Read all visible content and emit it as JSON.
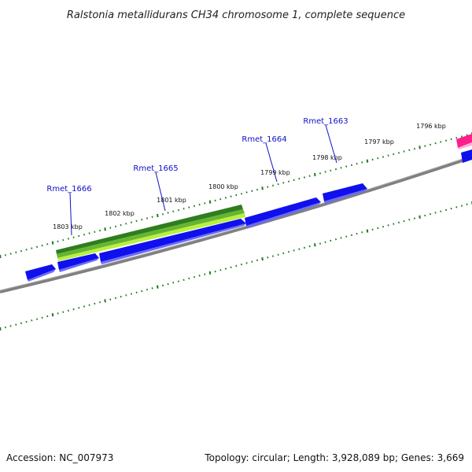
{
  "title": "Ralstonia metallidurans CH34 chromosome 1, complete sequence",
  "footer": {
    "accession": "Accession: NC_007973",
    "summary": "Topology: circular; Length: 3,928,089 bp; Genes: 3,669"
  },
  "colors": {
    "backbone": "#808080",
    "tick": "#1e7a1e",
    "gene_forward": "#1010ee",
    "cds_dark": "#2e7d1e",
    "cds_light": "#b8f040",
    "rrna": "#ff1e8c",
    "label": "#1010c8"
  },
  "scale_labels": [
    "1803 kbp",
    "1802 kbp",
    "1801 kbp",
    "1800 kbp",
    "1799 kbp",
    "1798 kbp",
    "1797 kbp",
    "1796 kbp"
  ],
  "gene_labels": [
    "Rmet_1666",
    "Rmet_1665",
    "Rmet_1664",
    "Rmet_1663"
  ]
}
